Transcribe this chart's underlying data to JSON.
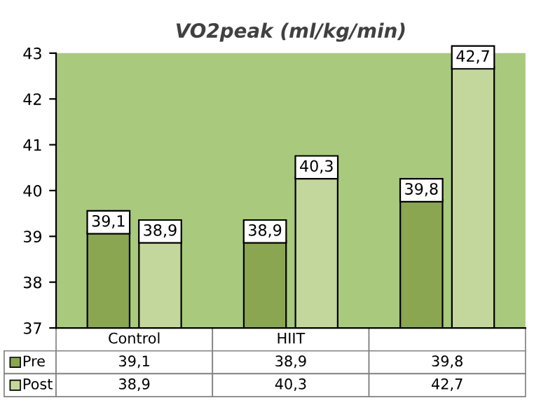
{
  "chart_data": {
    "type": "bar",
    "title": "VO2peak (ml/kg/min)",
    "categories": [
      "Control",
      "HIIT",
      null
    ],
    "series": [
      {
        "name": "Pre",
        "color": "#8aa650",
        "values": [
          39.1,
          38.9,
          39.8
        ],
        "value_labels": [
          "39,1",
          "38,9",
          "39,8"
        ]
      },
      {
        "name": "Post",
        "color": "#c3d69b",
        "values": [
          38.9,
          40.3,
          42.7
        ],
        "value_labels": [
          "38,9",
          "40,3",
          "42,7"
        ]
      }
    ],
    "ylim": [
      37,
      43
    ],
    "yticks": [
      37,
      38,
      39,
      40,
      41,
      42,
      43
    ],
    "grid": false,
    "legend": "bottom"
  }
}
